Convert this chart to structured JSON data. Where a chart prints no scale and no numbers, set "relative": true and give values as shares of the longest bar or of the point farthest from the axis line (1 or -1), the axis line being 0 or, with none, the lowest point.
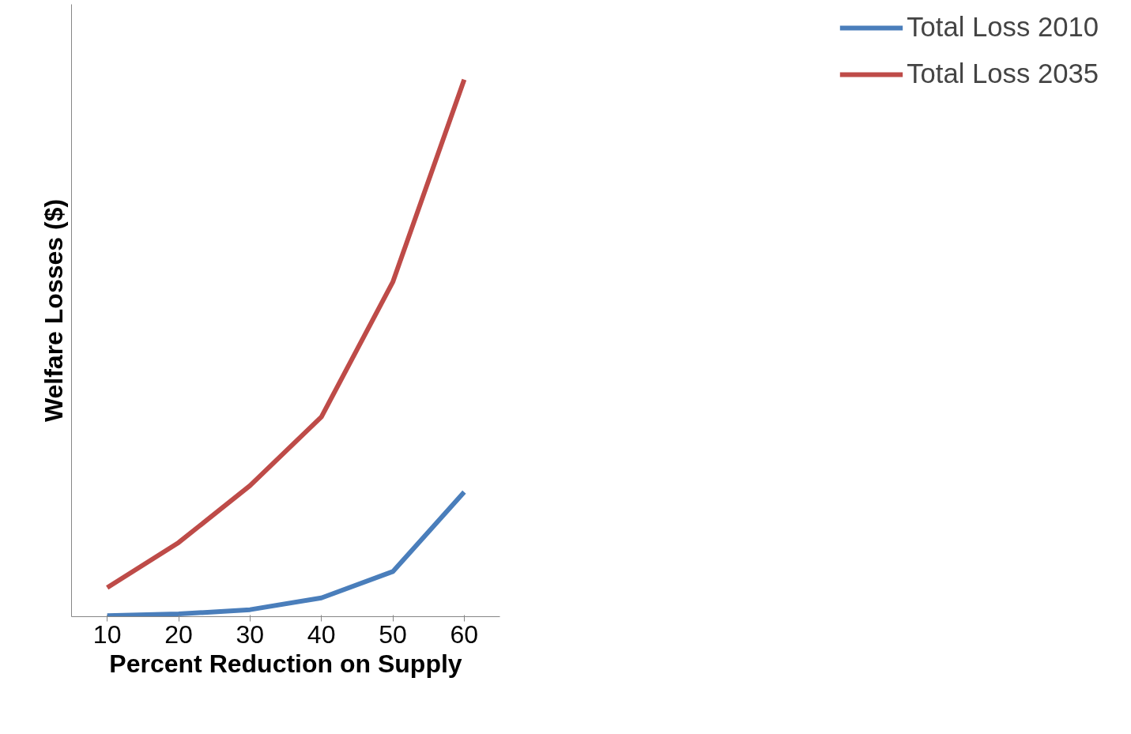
{
  "chart_data": {
    "type": "line",
    "relative": true,
    "xlabel": "Percent Reduction on Supply",
    "ylabel": "Welfare Losses ($)",
    "categories": [
      "10",
      "20",
      "30",
      "40",
      "50",
      "60"
    ],
    "series": [
      {
        "name": "Total Loss 2010",
        "color": "#4a7ebb",
        "values": [
          0.002,
          0.005,
          0.013,
          0.035,
          0.084,
          0.232
        ]
      },
      {
        "name": "Total Loss 2035",
        "color": "#be4b48",
        "values": [
          0.054,
          0.138,
          0.244,
          0.372,
          0.623,
          1
        ]
      }
    ],
    "legend": "right",
    "grid": false,
    "marker": "none",
    "line_style": "solid"
  }
}
